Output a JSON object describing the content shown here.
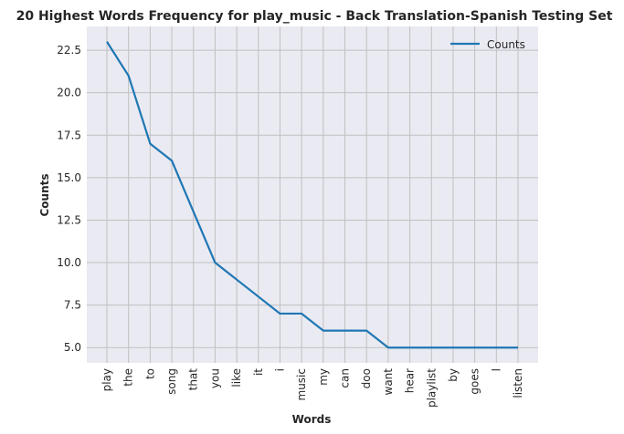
{
  "chart_data": {
    "type": "line",
    "title": "20 Highest Words Frequency for play_music - Back Translation-Spanish Testing Set",
    "xlabel": "Words",
    "ylabel": "Counts",
    "categories": [
      "play",
      "the",
      "to",
      "song",
      "that",
      "you",
      "like",
      "it",
      "i",
      "music",
      "my",
      "can",
      "doo",
      "want",
      "hear",
      "playlist",
      "by",
      "goes",
      "l",
      "listen"
    ],
    "series": [
      {
        "name": "Counts",
        "values": [
          23,
          21,
          17,
          16,
          13,
          10,
          9,
          8,
          7,
          7,
          6,
          6,
          6,
          5,
          5,
          5,
          5,
          5,
          5,
          5
        ]
      }
    ],
    "ylim": [
      4.1,
      23.9
    ],
    "yticks": [
      "5.0",
      "7.5",
      "10.0",
      "12.5",
      "15.0",
      "17.5",
      "20.0",
      "22.5"
    ],
    "grid": true,
    "legend_position": "top-right",
    "colors": {
      "line": "#1f77b4",
      "background": "#eaeaf2",
      "grid": "#c0c0c0"
    }
  }
}
